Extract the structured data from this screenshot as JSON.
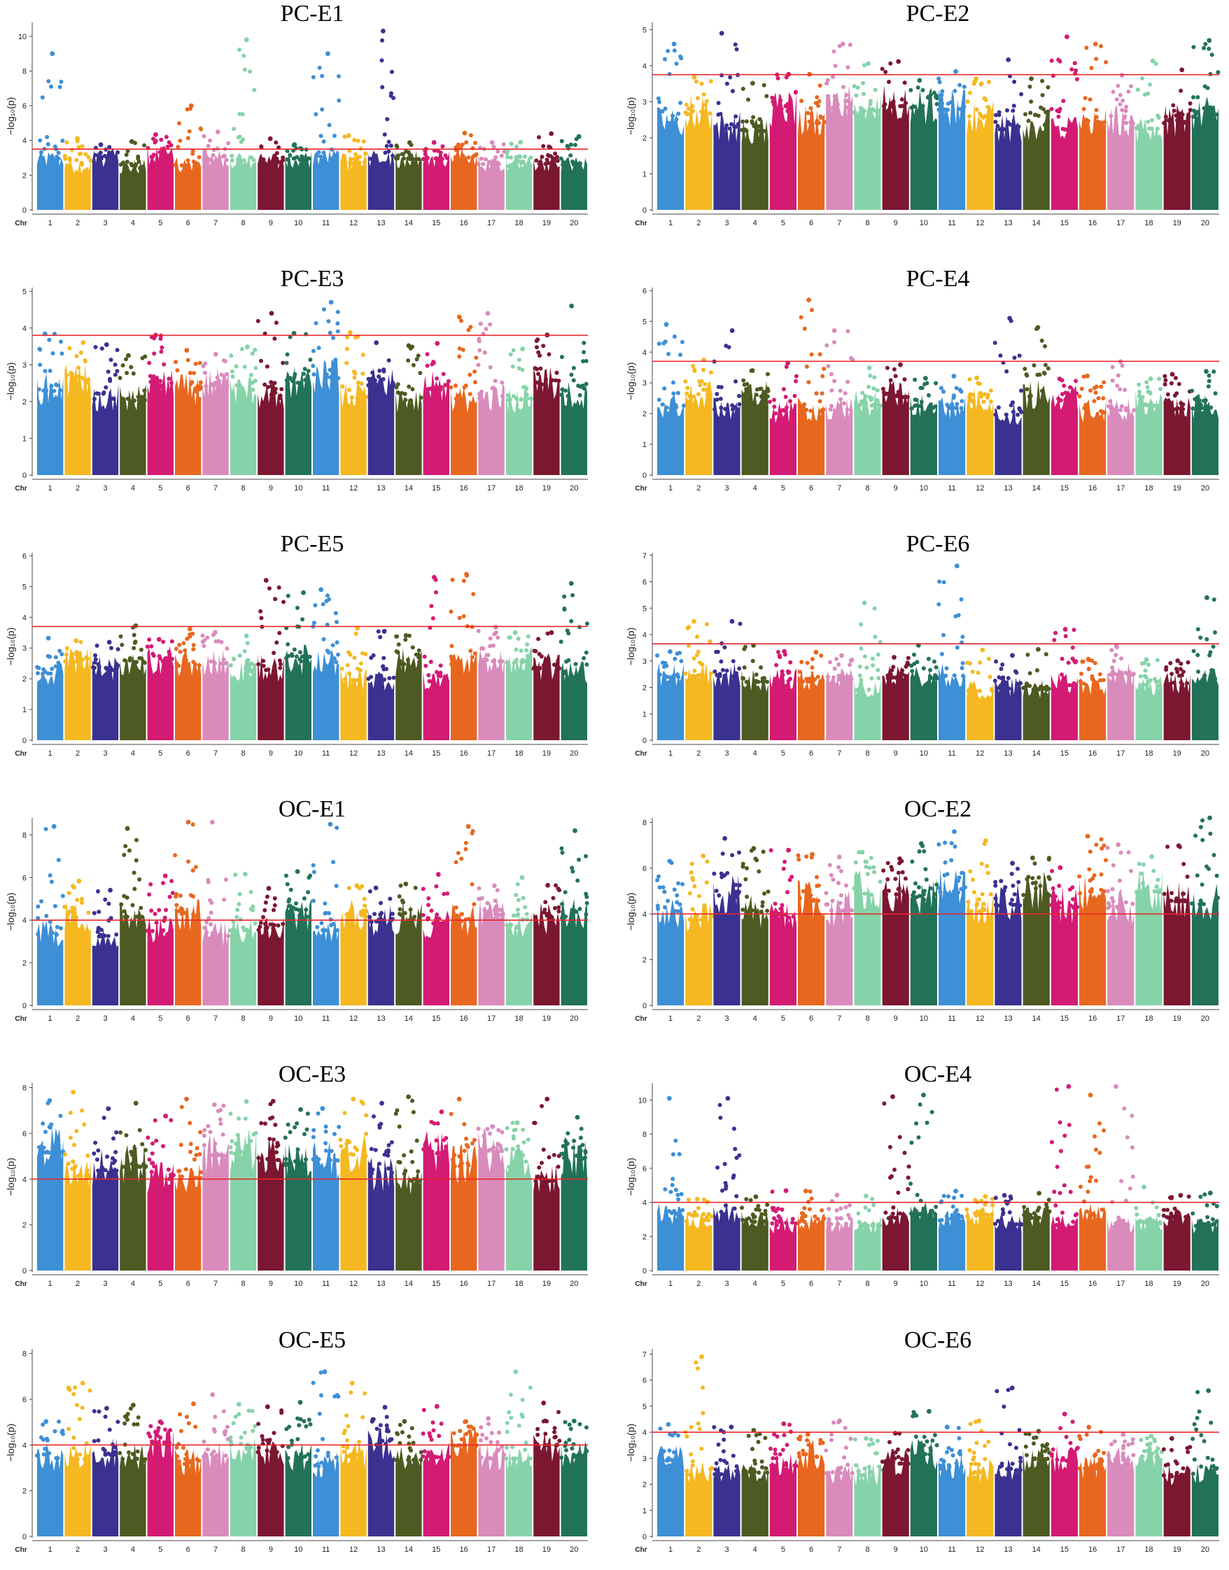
{
  "figure": {
    "y_axis_label": "−log₁₀(p)",
    "x_axis_word": "Chr",
    "chromosome_colors": [
      "#3d8fd6",
      "#f5b820",
      "#3b3190",
      "#4d5a21",
      "#d31b74",
      "#e8671e",
      "#d98bbc",
      "#86d3a9",
      "#7c1731",
      "#227259"
    ]
  },
  "chart_data": [
    {
      "type": "scatter",
      "title": "PC-E1",
      "ylabel": "−log₁₀(p)",
      "xlabel": "Chr",
      "ylim": [
        0,
        10.8
      ],
      "yticks": [
        0,
        2,
        4,
        6,
        8,
        10
      ],
      "threshold": 3.5,
      "base": 3.0,
      "chromosomes": [
        "1",
        "2",
        "3",
        "4",
        "5",
        "6",
        "7",
        "8",
        "9",
        "10",
        "11",
        "12",
        "13",
        "14",
        "15",
        "16",
        "17",
        "18",
        "19",
        "20"
      ],
      "peaks": [
        [
          8,
          9.8
        ],
        [
          13,
          10.3
        ],
        [
          6,
          6.0
        ],
        [
          11,
          9.0
        ],
        [
          1,
          9.0
        ]
      ]
    },
    {
      "type": "scatter",
      "title": "PC-E2",
      "ylabel": "−log₁₀(p)",
      "xlabel": "Chr",
      "ylim": [
        0,
        5.2
      ],
      "yticks": [
        0,
        1,
        2,
        3,
        4,
        5
      ],
      "threshold": 3.75,
      "base": 2.8,
      "chromosomes": [
        "1",
        "2",
        "3",
        "4",
        "5",
        "6",
        "7",
        "8",
        "9",
        "10",
        "11",
        "12",
        "13",
        "14",
        "15",
        "16",
        "17",
        "18",
        "19",
        "20"
      ],
      "peaks": [
        [
          3,
          4.9
        ],
        [
          15,
          4.8
        ],
        [
          20,
          4.7
        ],
        [
          16,
          4.6
        ],
        [
          7,
          4.6
        ],
        [
          1,
          4.6
        ]
      ]
    },
    {
      "type": "scatter",
      "title": "PC-E3",
      "ylabel": "−log₁₀(p)",
      "xlabel": "Chr",
      "ylim": [
        0,
        5.1
      ],
      "yticks": [
        0,
        1,
        2,
        3,
        4,
        5
      ],
      "threshold": 3.8,
      "base": 2.6,
      "chromosomes": [
        "1",
        "2",
        "3",
        "4",
        "5",
        "6",
        "7",
        "8",
        "9",
        "10",
        "11",
        "12",
        "13",
        "14",
        "15",
        "16",
        "17",
        "18",
        "19",
        "20"
      ],
      "peaks": [
        [
          11,
          4.7
        ],
        [
          20,
          4.6
        ],
        [
          9,
          4.4
        ],
        [
          17,
          4.4
        ],
        [
          16,
          4.3
        ]
      ]
    },
    {
      "type": "scatter",
      "title": "PC-E4",
      "ylabel": "−log₁₀(p)",
      "xlabel": "Chr",
      "ylim": [
        0,
        6.1
      ],
      "yticks": [
        0,
        1,
        2,
        3,
        4,
        5,
        6
      ],
      "threshold": 3.7,
      "base": 2.5,
      "chromosomes": [
        "1",
        "2",
        "3",
        "4",
        "5",
        "6",
        "7",
        "8",
        "9",
        "10",
        "11",
        "12",
        "13",
        "14",
        "15",
        "16",
        "17",
        "18",
        "19",
        "20"
      ],
      "peaks": [
        [
          6,
          5.7
        ],
        [
          13,
          5.1
        ],
        [
          14,
          4.8
        ],
        [
          3,
          4.7
        ],
        [
          7,
          4.7
        ],
        [
          1,
          4.9
        ]
      ]
    },
    {
      "type": "scatter",
      "title": "PC-E5",
      "ylabel": "−log₁₀(p)",
      "xlabel": "Chr",
      "ylim": [
        0,
        6.1
      ],
      "yticks": [
        0,
        1,
        2,
        3,
        4,
        5,
        6
      ],
      "threshold": 3.7,
      "base": 2.5,
      "chromosomes": [
        "1",
        "2",
        "3",
        "4",
        "5",
        "6",
        "7",
        "8",
        "9",
        "10",
        "11",
        "12",
        "13",
        "14",
        "15",
        "16",
        "17",
        "18",
        "19",
        "20"
      ],
      "peaks": [
        [
          16,
          5.4
        ],
        [
          15,
          5.3
        ],
        [
          9,
          5.2
        ],
        [
          20,
          5.1
        ],
        [
          11,
          4.9
        ],
        [
          10,
          4.8
        ]
      ]
    },
    {
      "type": "scatter",
      "title": "PC-E6",
      "ylabel": "−log₁₀(p)",
      "xlabel": "Chr",
      "ylim": [
        0,
        7.1
      ],
      "yticks": [
        0,
        1,
        2,
        3,
        4,
        5,
        6,
        7
      ],
      "threshold": 3.65,
      "base": 2.4,
      "chromosomes": [
        "1",
        "2",
        "3",
        "4",
        "5",
        "6",
        "7",
        "8",
        "9",
        "10",
        "11",
        "12",
        "13",
        "14",
        "15",
        "16",
        "17",
        "18",
        "19",
        "20"
      ],
      "peaks": [
        [
          11,
          6.6
        ],
        [
          20,
          5.4
        ],
        [
          8,
          5.2
        ],
        [
          2,
          4.5
        ],
        [
          3,
          4.5
        ],
        [
          15,
          4.2
        ]
      ]
    },
    {
      "type": "scatter",
      "title": "OC-E1",
      "ylabel": "−log₁₀(p)",
      "xlabel": "Chr",
      "ylim": [
        0,
        8.8
      ],
      "yticks": [
        0,
        2,
        4,
        6,
        8
      ],
      "threshold": 4.0,
      "base": 4.2,
      "chromosomes": [
        "1",
        "2",
        "3",
        "4",
        "5",
        "6",
        "7",
        "8",
        "9",
        "10",
        "11",
        "12",
        "13",
        "14",
        "15",
        "16",
        "17",
        "18",
        "19",
        "20"
      ],
      "peaks": [
        [
          1,
          8.4
        ],
        [
          4,
          8.3
        ],
        [
          6,
          8.6
        ],
        [
          7,
          8.6
        ],
        [
          11,
          8.5
        ],
        [
          16,
          8.4
        ],
        [
          20,
          8.2
        ]
      ]
    },
    {
      "type": "scatter",
      "title": "OC-E2",
      "ylabel": "−log₁₀(p)",
      "xlabel": "Chr",
      "ylim": [
        0,
        8.2
      ],
      "yticks": [
        0,
        2,
        4,
        6,
        8
      ],
      "threshold": 4.0,
      "base": 4.8,
      "chromosomes": [
        "1",
        "2",
        "3",
        "4",
        "5",
        "6",
        "7",
        "8",
        "9",
        "10",
        "11",
        "12",
        "13",
        "14",
        "15",
        "16",
        "17",
        "18",
        "19",
        "20"
      ],
      "peaks": [
        [
          11,
          7.6
        ],
        [
          16,
          7.4
        ],
        [
          3,
          7.3
        ],
        [
          12,
          7.2
        ],
        [
          20,
          8.2
        ],
        [
          8,
          6.7
        ]
      ]
    },
    {
      "type": "scatter",
      "title": "OC-E3",
      "ylabel": "−log₁₀(p)",
      "xlabel": "Chr",
      "ylim": [
        0,
        8.2
      ],
      "yticks": [
        0,
        2,
        4,
        6,
        8
      ],
      "threshold": 4.0,
      "base": 5.0,
      "chromosomes": [
        "1",
        "2",
        "3",
        "4",
        "5",
        "6",
        "7",
        "8",
        "9",
        "10",
        "11",
        "12",
        "13",
        "14",
        "15",
        "16",
        "17",
        "18",
        "19",
        "20"
      ],
      "peaks": [
        [
          2,
          7.8
        ],
        [
          14,
          7.6
        ],
        [
          19,
          7.5
        ],
        [
          6,
          7.5
        ],
        [
          12,
          7.5
        ],
        [
          16,
          7.5
        ]
      ]
    },
    {
      "type": "scatter",
      "title": "OC-E4",
      "ylabel": "−log₁₀(p)",
      "xlabel": "Chr",
      "ylim": [
        0,
        11.0
      ],
      "yticks": [
        0,
        2,
        4,
        6,
        8,
        10
      ],
      "threshold": 4.0,
      "base": 3.3,
      "chromosomes": [
        "1",
        "2",
        "3",
        "4",
        "5",
        "6",
        "7",
        "8",
        "9",
        "10",
        "11",
        "12",
        "13",
        "14",
        "15",
        "16",
        "17",
        "18",
        "19",
        "20"
      ],
      "peaks": [
        [
          1,
          10.1
        ],
        [
          3,
          10.1
        ],
        [
          15,
          10.8
        ],
        [
          17,
          10.8
        ],
        [
          16,
          10.3
        ],
        [
          10,
          10.3
        ],
        [
          9,
          10.2
        ]
      ]
    },
    {
      "type": "scatter",
      "title": "OC-E5",
      "ylabel": "−log₁₀(p)",
      "xlabel": "Chr",
      "ylim": [
        0,
        8.2
      ],
      "yticks": [
        0,
        2,
        4,
        6,
        8
      ],
      "threshold": 4.0,
      "base": 4.0,
      "chromosomes": [
        "1",
        "2",
        "3",
        "4",
        "5",
        "6",
        "7",
        "8",
        "9",
        "10",
        "11",
        "12",
        "13",
        "14",
        "15",
        "16",
        "17",
        "18",
        "19",
        "20"
      ],
      "peaks": [
        [
          11,
          7.2
        ],
        [
          18,
          7.2
        ],
        [
          2,
          6.7
        ],
        [
          12,
          6.7
        ],
        [
          6,
          5.8
        ],
        [
          7,
          6.2
        ]
      ]
    },
    {
      "type": "scatter",
      "title": "OC-E6",
      "ylabel": "−log₁₀(p)",
      "xlabel": "Chr",
      "ylim": [
        0,
        7.2
      ],
      "yticks": [
        0,
        1,
        2,
        3,
        4,
        5,
        6,
        7
      ],
      "threshold": 4.0,
      "base": 3.0,
      "chromosomes": [
        "1",
        "2",
        "3",
        "4",
        "5",
        "6",
        "7",
        "8",
        "9",
        "10",
        "11",
        "12",
        "13",
        "14",
        "15",
        "16",
        "17",
        "18",
        "19",
        "20"
      ],
      "peaks": [
        [
          2,
          6.9
        ],
        [
          13,
          5.7
        ],
        [
          20,
          5.6
        ],
        [
          15,
          4.7
        ],
        [
          10,
          4.8
        ],
        [
          1,
          4.3
        ]
      ]
    }
  ]
}
